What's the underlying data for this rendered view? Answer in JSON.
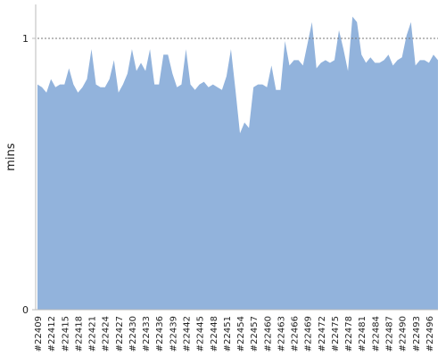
{
  "chart_data": {
    "type": "area",
    "ylabel": "mins",
    "categories": [
      "#22409",
      null,
      null,
      "#22412",
      null,
      null,
      "#22415",
      null,
      null,
      "#22418",
      null,
      null,
      "#22421",
      null,
      null,
      "#22424",
      null,
      null,
      "#22427",
      null,
      null,
      "#22430",
      null,
      null,
      "#22433",
      null,
      null,
      "#22436",
      null,
      null,
      "#22439",
      null,
      null,
      "#22442",
      null,
      null,
      "#22445",
      null,
      null,
      "#22448",
      null,
      null,
      "#22451",
      null,
      null,
      "#22454",
      null,
      null,
      "#22457",
      null,
      null,
      "#22460",
      null,
      null,
      "#22463",
      null,
      null,
      "#22466",
      null,
      null,
      "#22469",
      null,
      null,
      "#22472",
      null,
      null,
      "#22475",
      null,
      null,
      "#22478",
      null,
      null,
      "#22481",
      null,
      null,
      "#22484",
      null,
      null,
      "#22487",
      null,
      null,
      "#22490",
      null,
      null,
      "#22493",
      null,
      null,
      "#22496",
      null,
      null
    ],
    "values": [
      0.83,
      0.82,
      0.8,
      0.85,
      0.82,
      0.83,
      0.83,
      0.89,
      0.83,
      0.8,
      0.82,
      0.85,
      0.96,
      0.83,
      0.82,
      0.82,
      0.85,
      0.92,
      0.8,
      0.83,
      0.87,
      0.96,
      0.88,
      0.91,
      0.88,
      0.96,
      0.83,
      0.83,
      0.94,
      0.94,
      0.87,
      0.82,
      0.83,
      0.96,
      0.83,
      0.81,
      0.83,
      0.84,
      0.82,
      0.83,
      0.82,
      0.81,
      0.86,
      0.96,
      0.81,
      0.65,
      0.69,
      0.67,
      0.82,
      0.83,
      0.83,
      0.82,
      0.9,
      0.81,
      0.81,
      0.99,
      0.9,
      0.92,
      0.92,
      0.9,
      0.98,
      1.06,
      0.89,
      0.91,
      0.92,
      0.91,
      0.92,
      1.03,
      0.96,
      0.88,
      1.08,
      1.06,
      0.94,
      0.91,
      0.93,
      0.91,
      0.91,
      0.92,
      0.94,
      0.9,
      0.92,
      0.93,
      1.01,
      1.06,
      0.9,
      0.92,
      0.92,
      0.91,
      0.94,
      0.92
    ],
    "color": "#92b3dc",
    "ylim": [
      0,
      1.125
    ],
    "yticks": [
      0,
      1
    ],
    "grid": true
  }
}
